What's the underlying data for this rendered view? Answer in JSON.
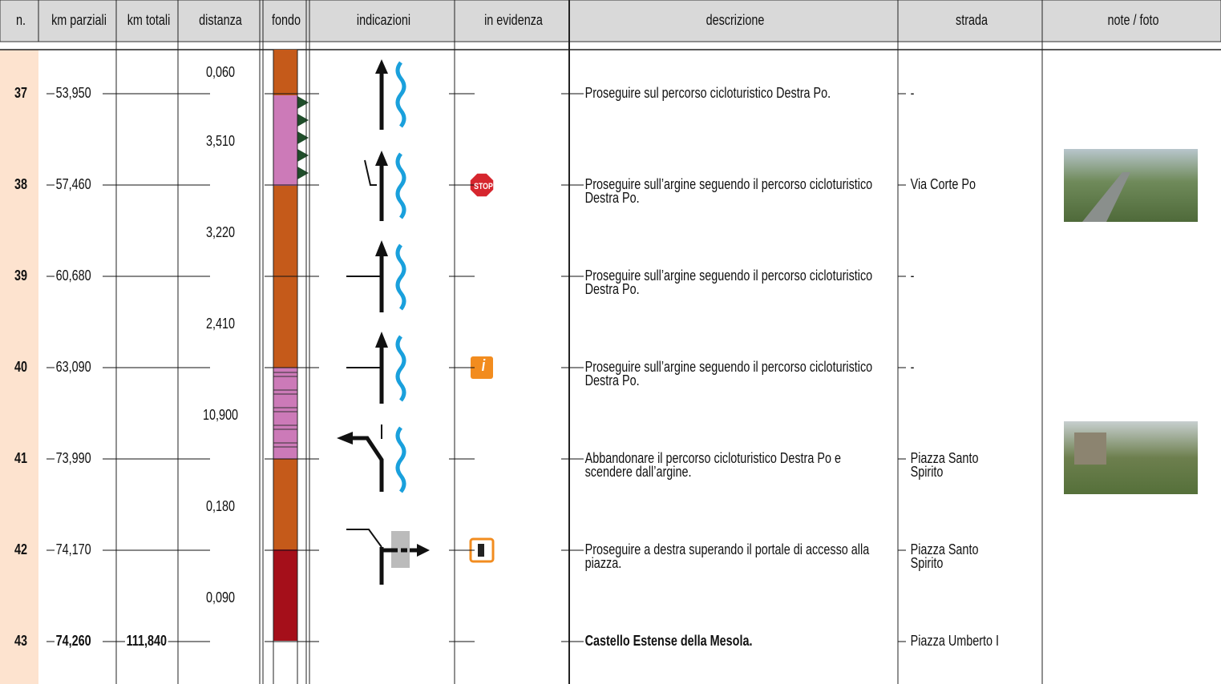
{
  "header": {
    "columns": [
      "n.",
      "km parziali",
      "km totali",
      "distanza",
      "fondo",
      "indicazioni",
      "in evidenza",
      "descrizione",
      "strada",
      "note / foto"
    ]
  },
  "rows": [
    {
      "n": "37",
      "km_parziali": "53,950",
      "descrizione": "Proseguire sul percorso cicloturistico Destra Po.",
      "strada": "-"
    },
    {
      "n": "38",
      "km_parziali": "57,460",
      "evidenza": "STOP",
      "descrizione": "Proseguire sull’argine seguendo il percorso cicloturistico Destra Po.",
      "strada": "Via Corte Po"
    },
    {
      "n": "39",
      "km_parziali": "60,680",
      "descrizione": "Proseguire sull’argine seguendo il percorso cicloturistico Destra Po.",
      "strada": "-"
    },
    {
      "n": "40",
      "km_parziali": "63,090",
      "evidenza": "i",
      "descrizione": "Proseguire sull’argine seguendo il percorso cicloturistico Destra Po.",
      "strada": "-"
    },
    {
      "n": "41",
      "km_parziali": "73,990",
      "descrizione": "Abbandonare il percorso cicloturistico Destra Po e scendere dall’argine.",
      "strada": "Piazza Santo Spirito"
    },
    {
      "n": "42",
      "km_parziali": "74,170",
      "descrizione": "Proseguire a destra superando il portale di accesso alla piazza.",
      "strada": "Piazza Santo Spirito"
    },
    {
      "n": "43",
      "km_parziali": "74,260",
      "km_totali": "111,840",
      "descrizione": "Castello Estense della Mesola.",
      "strada": "Piazza Umberto I"
    }
  ],
  "distanze": [
    "0,060",
    "3,510",
    "3,220",
    "2,410",
    "10,900",
    "0,180",
    "0,090"
  ]
}
